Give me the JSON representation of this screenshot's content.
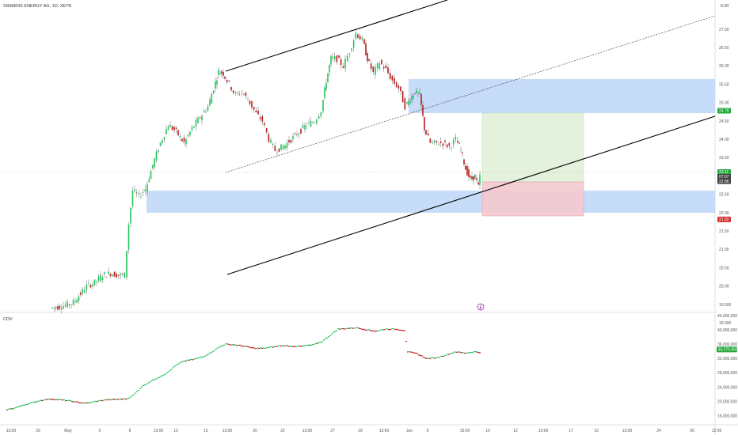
{
  "header": {
    "title": "SIEMENS ENERGY AG, 1D, XETR",
    "currency": "EUR"
  },
  "colors": {
    "up": "#22c55e",
    "down": "#b91c1c",
    "zone": "#bcd6f7",
    "profit": "#e3f1dd",
    "loss": "#f4c9cf",
    "badge_green": "#22a83c",
    "badge_red": "#d32f2f",
    "badge_dark": "#424242"
  },
  "chart_data": {
    "type": "candlestick",
    "price_axis": {
      "ticks": [
        "27.00",
        "26.50",
        "26.00",
        "25.50",
        "25.00",
        "24.50",
        "24.00",
        "23.50",
        "23.00",
        "22.50",
        "22.00",
        "21.50",
        "21.00",
        "20.50",
        "20.00",
        "19.500",
        "19.000"
      ]
    },
    "badges": [
      {
        "label": "24.78",
        "value": 24.78,
        "color": "badge_green"
      },
      {
        "label": "23.11",
        "value": 23.11,
        "color": "badge_green"
      },
      {
        "label": "07:07",
        "value": 22.98,
        "color": "badge_dark"
      },
      {
        "label": "22.86",
        "value": 22.86,
        "color": "badge_dark"
      },
      {
        "label": "21.82",
        "value": 21.82,
        "color": "badge_red"
      }
    ],
    "time_axis": {
      "labels": [
        "13:00",
        "29",
        "May",
        "6",
        "8",
        "13:00",
        "13",
        "15",
        "13:00",
        "20",
        "22",
        "13:00",
        "27",
        "29",
        "13:00",
        "Jun",
        "5",
        "15:00",
        "10",
        "12",
        "13:00",
        "17",
        "19",
        "13:00",
        "24",
        "26",
        "12:00"
      ]
    },
    "indicator": {
      "name": "CDV",
      "ticks": [
        "44,000,000",
        "40,000,000",
        "36,000,000",
        "32,000,000",
        "28,000,000",
        "24,000,000",
        "20,000,000",
        "16,000,000"
      ],
      "value_label": "34,270,450"
    }
  }
}
